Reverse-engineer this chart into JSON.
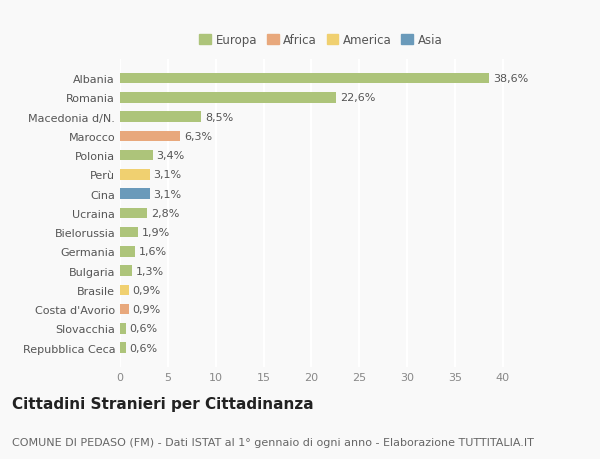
{
  "categories": [
    "Albania",
    "Romania",
    "Macedonia d/N.",
    "Marocco",
    "Polonia",
    "Perù",
    "Cina",
    "Ucraina",
    "Bielorussia",
    "Germania",
    "Bulgaria",
    "Brasile",
    "Costa d'Avorio",
    "Slovacchia",
    "Repubblica Ceca"
  ],
  "values": [
    38.6,
    22.6,
    8.5,
    6.3,
    3.4,
    3.1,
    3.1,
    2.8,
    1.9,
    1.6,
    1.3,
    0.9,
    0.9,
    0.6,
    0.6
  ],
  "labels": [
    "38,6%",
    "22,6%",
    "8,5%",
    "6,3%",
    "3,4%",
    "3,1%",
    "3,1%",
    "2,8%",
    "1,9%",
    "1,6%",
    "1,3%",
    "0,9%",
    "0,9%",
    "0,6%",
    "0,6%"
  ],
  "colors": [
    "#adc47a",
    "#adc47a",
    "#adc47a",
    "#e8a87c",
    "#adc47a",
    "#f0d070",
    "#6a9aba",
    "#adc47a",
    "#adc47a",
    "#adc47a",
    "#adc47a",
    "#f0d070",
    "#e8a87c",
    "#adc47a",
    "#adc47a"
  ],
  "legend": {
    "Europa": "#adc47a",
    "Africa": "#e8a87c",
    "America": "#f0d070",
    "Asia": "#6a9aba"
  },
  "xlim": [
    0,
    42
  ],
  "xticks": [
    0,
    5,
    10,
    15,
    20,
    25,
    30,
    35,
    40
  ],
  "title": "Cittadini Stranieri per Cittadinanza",
  "subtitle": "COMUNE DI PEDASO (FM) - Dati ISTAT al 1° gennaio di ogni anno - Elaborazione TUTTITALIA.IT",
  "background_color": "#f9f9f9",
  "grid_color": "#ffffff",
  "bar_height": 0.55,
  "title_fontsize": 11,
  "subtitle_fontsize": 8,
  "label_fontsize": 8,
  "tick_fontsize": 8
}
